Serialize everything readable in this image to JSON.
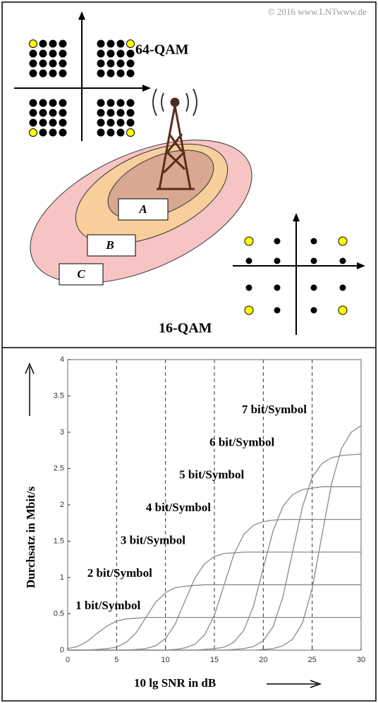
{
  "diagram": {
    "copyright": "© 2016 www.LNTwww.de",
    "qam64_label": "64-QAM",
    "qam16_label": "16-QAM",
    "zones": [
      "A",
      "B",
      "C"
    ]
  },
  "chart_data": {
    "type": "line",
    "x_label": "10 lg SNR in dB",
    "y_label": "Durchsatz in Mbit/s",
    "x": [
      0,
      1,
      2,
      3,
      4,
      5,
      6,
      7,
      8,
      9,
      10,
      11,
      12,
      13,
      14,
      15,
      16,
      17,
      18,
      19,
      20,
      21,
      22,
      23,
      24,
      25,
      26,
      27,
      28,
      29,
      30
    ],
    "series": [
      {
        "name": "1 bit/Symbol",
        "color": "#8a8a8a",
        "values": [
          0.02,
          0.05,
          0.12,
          0.23,
          0.33,
          0.4,
          0.43,
          0.44,
          0.45,
          0.45,
          0.45,
          0.45,
          0.45,
          0.45,
          0.45,
          0.45,
          0.45,
          0.45,
          0.45,
          0.45,
          0.45,
          0.45,
          0.45,
          0.45,
          0.45,
          0.45,
          0.45,
          0.45,
          0.45,
          0.45,
          0.45
        ]
      },
      {
        "name": "2 bit/Symbol",
        "color": "#8a8a8a",
        "values": [
          0,
          0,
          0,
          0.01,
          0.02,
          0.04,
          0.11,
          0.24,
          0.45,
          0.66,
          0.79,
          0.86,
          0.88,
          0.89,
          0.9,
          0.9,
          0.9,
          0.9,
          0.9,
          0.9,
          0.9,
          0.9,
          0.9,
          0.9,
          0.9,
          0.9,
          0.9,
          0.9,
          0.9,
          0.9,
          0.9
        ]
      },
      {
        "name": "3 bit/Symbol",
        "color": "#8a8a8a",
        "values": [
          0,
          0,
          0,
          0,
          0,
          0,
          0,
          0.01,
          0.02,
          0.06,
          0.16,
          0.36,
          0.68,
          0.99,
          1.19,
          1.29,
          1.33,
          1.34,
          1.35,
          1.35,
          1.35,
          1.35,
          1.35,
          1.35,
          1.35,
          1.35,
          1.35,
          1.35,
          1.35,
          1.35,
          1.35
        ]
      },
      {
        "name": "4 bit/Symbol",
        "color": "#8a8a8a",
        "values": [
          0,
          0,
          0,
          0,
          0,
          0,
          0,
          0,
          0,
          0,
          0,
          0.01,
          0.03,
          0.08,
          0.21,
          0.48,
          0.9,
          1.32,
          1.59,
          1.72,
          1.77,
          1.79,
          1.8,
          1.8,
          1.8,
          1.8,
          1.8,
          1.8,
          1.8,
          1.8,
          1.8
        ]
      },
      {
        "name": "5 bit/Symbol",
        "color": "#8a8a8a",
        "values": [
          0,
          0,
          0,
          0,
          0,
          0,
          0,
          0,
          0,
          0,
          0,
          0,
          0,
          0,
          0.01,
          0.02,
          0.04,
          0.11,
          0.27,
          0.61,
          1.13,
          1.64,
          1.98,
          2.14,
          2.21,
          2.23,
          2.25,
          2.25,
          2.25,
          2.25,
          2.25
        ]
      },
      {
        "name": "6 bit/Symbol",
        "color": "#8a8a8a",
        "values": [
          0,
          0,
          0,
          0,
          0,
          0,
          0,
          0,
          0,
          0,
          0,
          0,
          0,
          0,
          0,
          0,
          0,
          0.01,
          0.02,
          0.05,
          0.13,
          0.32,
          0.73,
          1.35,
          1.97,
          2.38,
          2.57,
          2.65,
          2.68,
          2.69,
          2.7
        ]
      },
      {
        "name": "7 bit/Symbol",
        "color": "#8a8a8a",
        "values": [
          0,
          0,
          0,
          0,
          0,
          0,
          0,
          0,
          0,
          0,
          0.0,
          0,
          0,
          0,
          0,
          0,
          0,
          0,
          0,
          0,
          0.01,
          0.02,
          0.06,
          0.15,
          0.37,
          0.85,
          1.58,
          2.3,
          2.78,
          3.0,
          3.09
        ]
      }
    ],
    "xlim": [
      0,
      30
    ],
    "ylim": [
      0,
      4
    ],
    "xticks": [
      0,
      5,
      10,
      15,
      20,
      25,
      30
    ],
    "yticks": [
      0,
      0.5,
      1,
      1.5,
      2,
      2.5,
      3,
      3.5,
      4
    ],
    "grid": "x-dashed"
  }
}
